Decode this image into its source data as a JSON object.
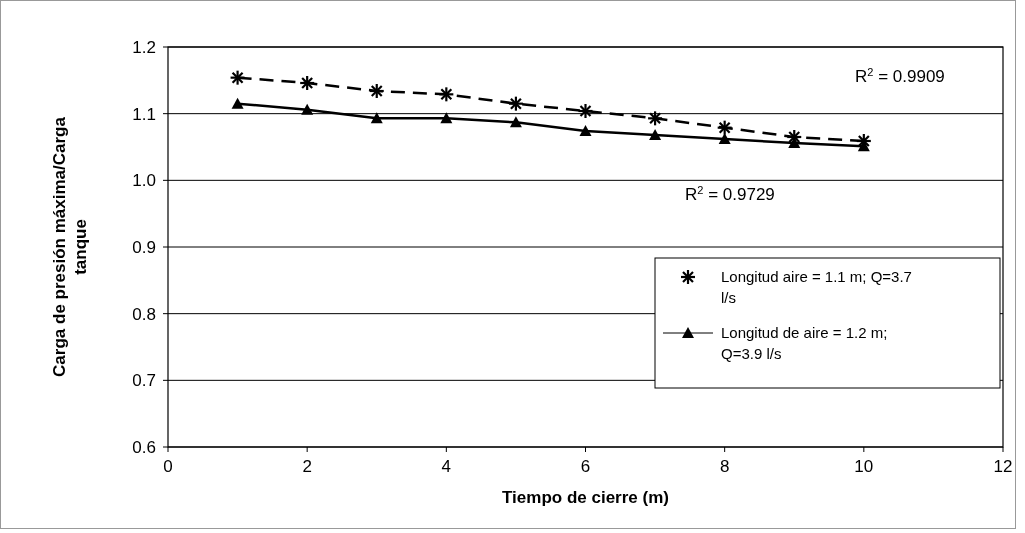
{
  "chart_data": {
    "type": "line",
    "xlabel": "Tiempo de cierre (m)",
    "ylabel": "Carga de presión máxima/Carga tanque",
    "x": [
      1,
      2,
      3,
      4,
      5,
      6,
      7,
      8,
      9,
      10
    ],
    "series": [
      {
        "name": "Longitud aire = 1.1 m; Q=3.7 l/s",
        "color": "#000000",
        "marker": "cross",
        "line_style": "dashed",
        "values": [
          1.154,
          1.146,
          1.134,
          1.129,
          1.115,
          1.104,
          1.093,
          1.079,
          1.065,
          1.059
        ]
      },
      {
        "name": "Longitud de aire = 1.2 m; Q=3.9 l/s",
        "color": "#000000",
        "marker": "triangle",
        "line_style": "solid",
        "values": [
          1.115,
          1.106,
          1.093,
          1.093,
          1.087,
          1.074,
          1.068,
          1.062,
          1.056,
          1.051
        ]
      }
    ],
    "annotations": [
      "R$^{2}$ = 0.9909",
      "R$^{2}$ = 0.9729"
    ],
    "xlim": [
      0,
      12
    ],
    "xticks": [
      0,
      2,
      4,
      6,
      8,
      10,
      12
    ],
    "ylim": [
      0.6,
      1.2
    ],
    "yticks": [
      {
        "value": 0.6,
        "label": "0.6"
      },
      {
        "value": 0.7,
        "label": "0.7"
      },
      {
        "value": 0.8,
        "label": "0.8"
      },
      {
        "value": 0.9,
        "label": "0.9"
      },
      {
        "value": 1.0,
        "label": "1.0"
      },
      {
        "value": 1.1,
        "label": "1.1"
      },
      {
        "value": 1.2,
        "label": "1.2"
      }
    ],
    "grid": "y",
    "legend": "right"
  }
}
